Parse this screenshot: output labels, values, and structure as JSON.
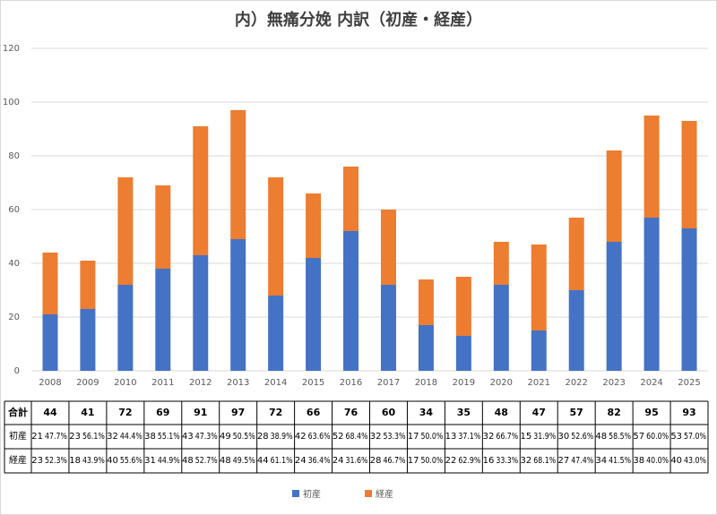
{
  "chart_data": {
    "type": "stacked-bar",
    "title": "内）無痛分娩 内訳（初産・経産）",
    "categories": [
      "2008",
      "2009",
      "2010",
      "2011",
      "2012",
      "2013",
      "2014",
      "2015",
      "2016",
      "2017",
      "2018",
      "2019",
      "2020",
      "2021",
      "2022",
      "2023",
      "2024",
      "2025"
    ],
    "series": [
      {
        "name": "初産",
        "color": "#4472c4",
        "values": [
          21,
          23,
          32,
          38,
          43,
          49,
          28,
          42,
          52,
          32,
          17,
          13,
          32,
          15,
          30,
          48,
          57,
          53
        ],
        "share_labels": [
          "47.7%",
          "56.1%",
          "44.4%",
          "55.1%",
          "47.3%",
          "50.5%",
          "38.9%",
          "63.6%",
          "68.4%",
          "53.3%",
          "50.0%",
          "37.1%",
          "66.7%",
          "31.9%",
          "52.6%",
          "58.5%",
          "60.0%",
          "57.0%"
        ]
      },
      {
        "name": "経産",
        "color": "#ed7d31",
        "values": [
          23,
          18,
          40,
          31,
          48,
          48,
          44,
          24,
          24,
          28,
          17,
          22,
          16,
          32,
          27,
          34,
          38,
          40
        ],
        "share_labels": [
          "52.3%",
          "43.9%",
          "55.6%",
          "44.9%",
          "52.7%",
          "49.5%",
          "61.1%",
          "36.4%",
          "31.6%",
          "46.7%",
          "50.0%",
          "62.9%",
          "33.3%",
          "68.1%",
          "47.4%",
          "41.5%",
          "40.0%",
          "43.0%"
        ]
      }
    ],
    "total_label": "合計",
    "totals": [
      44,
      41,
      72,
      69,
      91,
      97,
      72,
      66,
      76,
      60,
      34,
      35,
      48,
      47,
      57,
      82,
      95,
      93
    ],
    "ylim": [
      0,
      120
    ],
    "yticks": [
      0,
      20,
      40,
      60,
      80,
      100,
      120
    ],
    "grid": true,
    "legend": "bottom"
  }
}
